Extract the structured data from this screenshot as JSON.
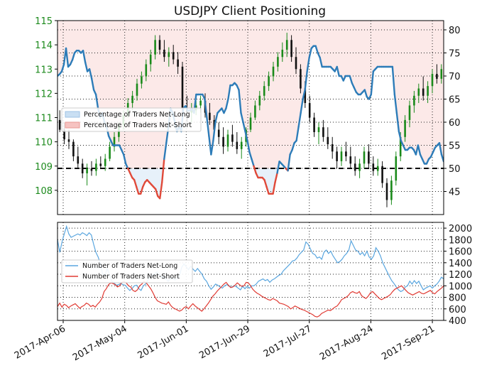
{
  "chart_data": [
    {
      "type": "candlestick",
      "title": "USDJPY Client Positioning",
      "price_axis": {
        "side": "left",
        "range": [
          107.0,
          115.0
        ],
        "ticks": [
          108,
          109,
          110,
          111,
          112,
          113,
          114,
          115
        ]
      },
      "percent_axis": {
        "side": "right",
        "range": [
          40,
          82
        ],
        "ticks": [
          45,
          50,
          55,
          60,
          65,
          70,
          75,
          80
        ]
      },
      "reference_line": {
        "value": 50,
        "axis": "percent"
      },
      "legend": {
        "placement": "center-left",
        "entries": [
          "Percentage of Traders Net-Long",
          "Percentage of Traders Net-Short"
        ]
      },
      "grid": true,
      "percent_net_long": [
        70,
        70.4,
        71,
        72.5,
        76,
        72,
        72.5,
        73.5,
        75,
        75.5,
        75.5,
        75,
        75.5,
        73,
        71,
        71.5,
        69.5,
        67,
        66,
        63,
        61,
        62,
        60,
        59,
        57,
        56,
        55,
        55,
        55,
        55,
        54,
        53,
        51,
        50,
        49,
        48,
        47.5,
        46,
        44.5,
        44.5,
        46,
        47,
        47.5,
        47,
        46.5,
        46,
        45.5,
        44,
        43.5,
        47,
        52,
        55.5,
        59,
        63,
        62,
        60,
        58,
        59,
        58,
        63,
        63.5,
        62.5,
        62.5,
        63,
        62,
        66,
        66,
        66,
        66,
        65,
        61,
        57,
        53,
        56,
        60,
        62,
        62.5,
        63,
        62,
        63,
        65,
        68,
        68,
        68.5,
        68,
        67,
        62,
        60,
        58,
        56,
        53.5,
        52,
        50.5,
        49,
        48,
        48,
        48,
        47.5,
        46,
        44.5,
        44.5,
        44.5,
        47,
        49,
        51.5,
        51,
        50.5,
        50,
        49.5,
        53,
        54,
        55.5,
        56,
        59,
        62,
        65,
        67,
        71,
        74,
        76,
        76.5,
        76.5,
        75,
        74,
        72,
        72,
        72,
        72,
        72,
        71.5,
        71,
        72,
        70,
        70,
        69,
        70,
        70,
        70,
        68.5,
        67.5,
        66.5,
        66,
        66,
        66.5,
        67,
        65.5,
        65,
        66,
        71,
        71.5,
        72,
        72,
        72,
        72,
        72,
        72,
        72,
        72,
        66,
        62,
        58,
        56,
        55,
        54,
        54,
        54.5,
        54.5,
        54,
        53,
        55,
        53,
        52,
        51,
        51,
        52,
        52.5,
        53.5,
        54.5,
        55,
        55.5,
        53,
        51.5
      ],
      "candles": [
        {
          "o": 110.9,
          "h": 111.3,
          "l": 110.4,
          "c": 110.5
        },
        {
          "o": 110.5,
          "h": 110.8,
          "l": 109.9,
          "c": 110.1
        },
        {
          "o": 110.1,
          "h": 110.5,
          "l": 109.7,
          "c": 110.0
        },
        {
          "o": 110.0,
          "h": 110.1,
          "l": 109.2,
          "c": 109.4
        },
        {
          "o": 109.4,
          "h": 109.8,
          "l": 108.9,
          "c": 109.1
        },
        {
          "o": 109.1,
          "h": 109.3,
          "l": 108.5,
          "c": 108.7
        },
        {
          "o": 108.7,
          "h": 109.1,
          "l": 108.2,
          "c": 108.9
        },
        {
          "o": 108.9,
          "h": 109.2,
          "l": 108.6,
          "c": 108.8
        },
        {
          "o": 108.8,
          "h": 109.3,
          "l": 108.6,
          "c": 109.1
        },
        {
          "o": 109.1,
          "h": 109.4,
          "l": 108.9,
          "c": 109.0
        },
        {
          "o": 109.0,
          "h": 109.5,
          "l": 108.8,
          "c": 109.3
        },
        {
          "o": 109.3,
          "h": 110.0,
          "l": 109.2,
          "c": 109.8
        },
        {
          "o": 109.8,
          "h": 110.4,
          "l": 109.6,
          "c": 110.2
        },
        {
          "o": 110.2,
          "h": 110.8,
          "l": 110.0,
          "c": 110.7
        },
        {
          "o": 110.7,
          "h": 111.3,
          "l": 110.5,
          "c": 111.1
        },
        {
          "o": 111.1,
          "h": 111.8,
          "l": 111.0,
          "c": 111.6
        },
        {
          "o": 111.6,
          "h": 112.1,
          "l": 111.3,
          "c": 111.9
        },
        {
          "o": 111.9,
          "h": 112.6,
          "l": 111.7,
          "c": 112.4
        },
        {
          "o": 112.4,
          "h": 112.9,
          "l": 112.2,
          "c": 112.7
        },
        {
          "o": 112.7,
          "h": 113.4,
          "l": 112.5,
          "c": 113.2
        },
        {
          "o": 113.2,
          "h": 113.8,
          "l": 112.9,
          "c": 113.6
        },
        {
          "o": 113.6,
          "h": 114.4,
          "l": 113.4,
          "c": 114.2
        },
        {
          "o": 114.2,
          "h": 114.4,
          "l": 113.6,
          "c": 113.8
        },
        {
          "o": 113.8,
          "h": 114.2,
          "l": 113.3,
          "c": 113.5
        },
        {
          "o": 113.5,
          "h": 113.9,
          "l": 113.1,
          "c": 113.7
        },
        {
          "o": 113.7,
          "h": 114.0,
          "l": 113.2,
          "c": 113.4
        },
        {
          "o": 113.4,
          "h": 113.7,
          "l": 112.8,
          "c": 113.1
        },
        {
          "o": 113.1,
          "h": 113.3,
          "l": 111.2,
          "c": 111.4
        },
        {
          "o": 111.4,
          "h": 111.9,
          "l": 110.8,
          "c": 111.2
        },
        {
          "o": 111.2,
          "h": 111.6,
          "l": 110.8,
          "c": 111.3
        },
        {
          "o": 111.3,
          "h": 111.7,
          "l": 111.1,
          "c": 111.5
        },
        {
          "o": 111.5,
          "h": 111.9,
          "l": 111.2,
          "c": 111.7
        },
        {
          "o": 111.7,
          "h": 112.0,
          "l": 111.0,
          "c": 111.2
        },
        {
          "o": 111.2,
          "h": 111.6,
          "l": 110.7,
          "c": 110.9
        },
        {
          "o": 110.9,
          "h": 111.1,
          "l": 110.3,
          "c": 110.5
        },
        {
          "o": 110.5,
          "h": 110.8,
          "l": 109.9,
          "c": 110.2
        },
        {
          "o": 110.2,
          "h": 110.6,
          "l": 109.5,
          "c": 109.8
        },
        {
          "o": 109.8,
          "h": 110.5,
          "l": 109.6,
          "c": 110.3
        },
        {
          "o": 110.3,
          "h": 110.7,
          "l": 109.8,
          "c": 110.0
        },
        {
          "o": 110.0,
          "h": 110.4,
          "l": 109.5,
          "c": 109.7
        },
        {
          "o": 109.7,
          "h": 110.2,
          "l": 109.3,
          "c": 110.0
        },
        {
          "o": 110.0,
          "h": 110.6,
          "l": 109.8,
          "c": 110.5
        },
        {
          "o": 110.5,
          "h": 111.2,
          "l": 110.4,
          "c": 111.0
        },
        {
          "o": 111.0,
          "h": 111.7,
          "l": 110.9,
          "c": 111.5
        },
        {
          "o": 111.5,
          "h": 112.1,
          "l": 111.3,
          "c": 111.9
        },
        {
          "o": 111.9,
          "h": 112.5,
          "l": 111.7,
          "c": 112.3
        },
        {
          "o": 112.3,
          "h": 112.9,
          "l": 112.1,
          "c": 112.7
        },
        {
          "o": 112.7,
          "h": 113.3,
          "l": 112.5,
          "c": 113.1
        },
        {
          "o": 113.1,
          "h": 113.7,
          "l": 112.9,
          "c": 113.5
        },
        {
          "o": 113.5,
          "h": 114.1,
          "l": 113.3,
          "c": 113.8
        },
        {
          "o": 113.8,
          "h": 114.5,
          "l": 113.5,
          "c": 114.2
        },
        {
          "o": 114.2,
          "h": 114.4,
          "l": 113.3,
          "c": 113.5
        },
        {
          "o": 113.5,
          "h": 113.9,
          "l": 112.8,
          "c": 113.0
        },
        {
          "o": 113.0,
          "h": 113.2,
          "l": 112.0,
          "c": 112.2
        },
        {
          "o": 112.2,
          "h": 112.5,
          "l": 111.4,
          "c": 111.6
        },
        {
          "o": 111.6,
          "h": 111.9,
          "l": 110.8,
          "c": 111.0
        },
        {
          "o": 111.0,
          "h": 111.2,
          "l": 110.2,
          "c": 110.4
        },
        {
          "o": 110.4,
          "h": 110.8,
          "l": 109.9,
          "c": 110.6
        },
        {
          "o": 110.6,
          "h": 110.9,
          "l": 110.0,
          "c": 110.2
        },
        {
          "o": 110.2,
          "h": 110.6,
          "l": 109.7,
          "c": 109.9
        },
        {
          "o": 109.9,
          "h": 110.2,
          "l": 109.3,
          "c": 109.6
        },
        {
          "o": 109.6,
          "h": 109.8,
          "l": 108.9,
          "c": 109.2
        },
        {
          "o": 109.2,
          "h": 109.8,
          "l": 109.0,
          "c": 109.6
        },
        {
          "o": 109.6,
          "h": 110.0,
          "l": 109.2,
          "c": 109.4
        },
        {
          "o": 109.4,
          "h": 109.8,
          "l": 108.9,
          "c": 109.1
        },
        {
          "o": 109.1,
          "h": 109.4,
          "l": 108.6,
          "c": 108.8
        },
        {
          "o": 108.8,
          "h": 109.3,
          "l": 108.5,
          "c": 109.1
        },
        {
          "o": 109.1,
          "h": 109.8,
          "l": 108.9,
          "c": 109.6
        },
        {
          "o": 109.6,
          "h": 109.9,
          "l": 108.9,
          "c": 109.1
        },
        {
          "o": 109.1,
          "h": 109.4,
          "l": 108.6,
          "c": 108.8
        },
        {
          "o": 108.8,
          "h": 109.3,
          "l": 108.6,
          "c": 109.0
        },
        {
          "o": 109.0,
          "h": 109.2,
          "l": 108.1,
          "c": 108.3
        },
        {
          "o": 108.3,
          "h": 108.5,
          "l": 107.3,
          "c": 107.6
        },
        {
          "o": 107.6,
          "h": 108.6,
          "l": 107.4,
          "c": 108.4
        },
        {
          "o": 108.4,
          "h": 109.6,
          "l": 108.2,
          "c": 109.4
        },
        {
          "o": 109.4,
          "h": 110.4,
          "l": 109.2,
          "c": 110.2
        },
        {
          "o": 110.2,
          "h": 111.1,
          "l": 110.0,
          "c": 110.9
        },
        {
          "o": 110.9,
          "h": 111.7,
          "l": 110.6,
          "c": 111.5
        },
        {
          "o": 111.5,
          "h": 112.1,
          "l": 111.2,
          "c": 111.9
        },
        {
          "o": 111.9,
          "h": 112.4,
          "l": 111.6,
          "c": 112.2
        },
        {
          "o": 112.2,
          "h": 112.7,
          "l": 111.7,
          "c": 111.9
        },
        {
          "o": 111.9,
          "h": 112.5,
          "l": 111.6,
          "c": 112.3
        },
        {
          "o": 112.3,
          "h": 113.0,
          "l": 112.0,
          "c": 112.8
        },
        {
          "o": 112.8,
          "h": 113.2,
          "l": 112.4,
          "c": 112.6
        },
        {
          "o": 112.6,
          "h": 113.2,
          "l": 112.4,
          "c": 113.0
        }
      ]
    },
    {
      "type": "line",
      "y_axis": {
        "side": "right",
        "range": [
          400,
          2100
        ],
        "ticks": [
          400,
          600,
          800,
          1000,
          1200,
          1400,
          1600,
          1800,
          2000
        ]
      },
      "x_tick_labels": [
        "2017-Apr-06",
        "2017-May-04",
        "2017-Jun-01",
        "2017-Jun-29",
        "2017-Jul-27",
        "2017-Aug-24",
        "2017-Sep-21"
      ],
      "legend": {
        "placement": "center-left"
      },
      "grid": true,
      "series": [
        {
          "name": "Number of Traders Net-Long",
          "color": "#5aa6df",
          "values": [
            1800,
            1580,
            1760,
            1900,
            2030,
            1900,
            1840,
            1860,
            1880,
            1900,
            1880,
            1920,
            1900,
            1870,
            1920,
            1880,
            1720,
            1580,
            1500,
            1380,
            1200,
            1180,
            1300,
            1200,
            1080,
            1050,
            1010,
            1020,
            1040,
            1020,
            1010,
            960,
            920,
            950,
            1000,
            1010,
            950,
            920,
            1000,
            1030,
            1100,
            1150,
            1180,
            1210,
            1240,
            1200,
            1150,
            1160,
            1120,
            1080,
            1120,
            1140,
            1100,
            1130,
            1170,
            1320,
            1380,
            1330,
            1280,
            1340,
            1290,
            1250,
            1300,
            1250,
            1200,
            1120,
            1080,
            1000,
            940,
            980,
            1030,
            1010,
            980,
            960,
            1000,
            1020,
            1000,
            970,
            1000,
            990,
            960,
            930,
            990,
            950,
            990,
            960,
            1000,
            1000,
            1030,
            1080,
            1100,
            1120,
            1090,
            1110,
            1060,
            1100,
            1120,
            1150,
            1180,
            1200,
            1260,
            1300,
            1340,
            1380,
            1430,
            1440,
            1480,
            1540,
            1580,
            1620,
            1760,
            1720,
            1640,
            1560,
            1540,
            1480,
            1500,
            1460,
            1580,
            1620,
            1560,
            1600,
            1520,
            1460,
            1400,
            1420,
            1460,
            1520,
            1560,
            1620,
            1780,
            1700,
            1620,
            1600,
            1540,
            1580,
            1520,
            1600,
            1500,
            1460,
            1520,
            1660,
            1600,
            1520,
            1400,
            1320,
            1240,
            1160,
            1090,
            1040,
            980,
            930,
            900,
            920,
            980,
            1000,
            1080,
            1030,
            1090,
            1040,
            1080,
            1000,
            930,
            960,
            980,
            1000,
            960,
            1000,
            1030,
            1080,
            1150,
            1120
          ]
        },
        {
          "name": "Number of Traders Net-Short",
          "color": "#e03a33",
          "values": [
            640,
            700,
            630,
            680,
            660,
            620,
            650,
            670,
            690,
            650,
            610,
            640,
            660,
            700,
            680,
            640,
            660,
            630,
            680,
            720,
            780,
            900,
            950,
            1020,
            1050,
            1040,
            1020,
            980,
            1000,
            1060,
            1080,
            1050,
            1000,
            980,
            920,
            900,
            930,
            1000,
            1030,
            1080,
            1050,
            1000,
            950,
            880,
            800,
            740,
            720,
            700,
            690,
            680,
            720,
            660,
            620,
            600,
            580,
            560,
            580,
            620,
            640,
            600,
            650,
            690,
            650,
            620,
            590,
            560,
            600,
            650,
            700,
            760,
            820,
            860,
            910,
            950,
            990,
            1030,
            1060,
            1010,
            970,
            980,
            1010,
            1050,
            1020,
            990,
            1000,
            1060,
            1050,
            1000,
            940,
            900,
            870,
            850,
            820,
            800,
            780,
            760,
            750,
            780,
            760,
            740,
            700,
            690,
            680,
            660,
            640,
            600,
            620,
            650,
            630,
            610,
            590,
            580,
            560,
            540,
            520,
            500,
            470,
            460,
            480,
            520,
            540,
            560,
            580,
            570,
            600,
            630,
            650,
            700,
            760,
            780,
            800,
            830,
            880,
            900,
            880,
            870,
            900,
            830,
            800,
            780,
            820,
            880,
            900,
            860,
            820,
            780,
            760,
            780,
            800,
            820,
            850,
            900,
            940,
            960,
            980,
            1000,
            960,
            920,
            880,
            860,
            840,
            860,
            880,
            900,
            870,
            860,
            880,
            900,
            920,
            880,
            860,
            900,
            930,
            960,
            1000
          ]
        }
      ]
    }
  ]
}
